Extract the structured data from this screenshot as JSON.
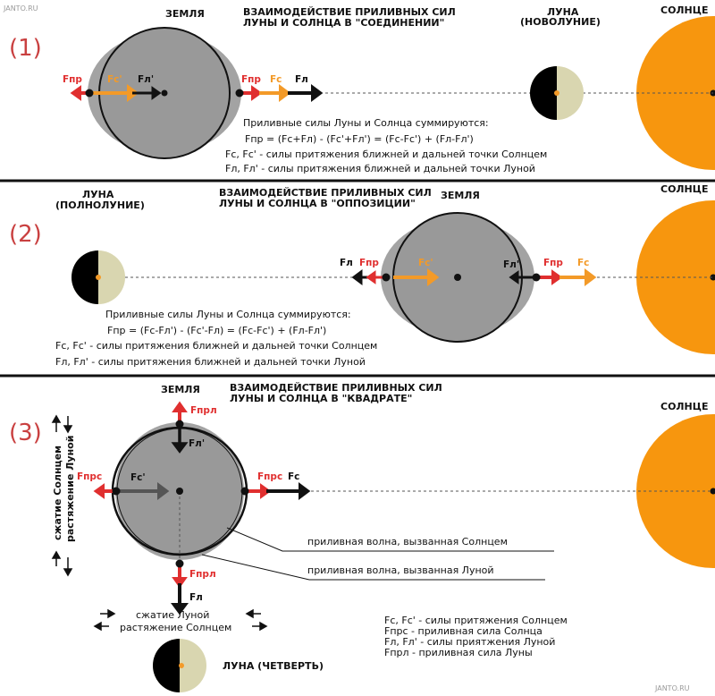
{
  "site": {
    "watermark_top": "JANTO.RU",
    "watermark_bottom": "JANTO.RU"
  },
  "colors": {
    "sun": "#f7960e",
    "earth": "#999999",
    "earth_bulge": "#a3a3a3",
    "moon_light": "#d9d6b0",
    "moon_dark": "#000000",
    "red_arrow": "#e02f2f",
    "orange_arrow": "#f39a28",
    "black_arrow": "#111111",
    "divider": "#111111",
    "section_number": "#c94040"
  },
  "panels": [
    {
      "number": "(1)",
      "title_line1": "ВЗАИМОДЕЙСТВИЕ ПРИЛИВНЫХ СИЛ",
      "title_line2": "ЛУНЫ И СОЛНЦА В \"СОЕДИНЕНИИ\"",
      "earth_label": "ЗЕМЛЯ",
      "moon_label_line1": "ЛУНА",
      "moon_label_line2": "(НОВОЛУНИЕ)",
      "sun_label": "СОЛНЦЕ",
      "arrows": {
        "fpr_left": "Fпр",
        "fc_prime": "Fc'",
        "fl_prime": "Fл'",
        "fpr_right": "Fпр",
        "fc": "Fc",
        "fl": "Fл"
      },
      "notes": [
        "Приливные силы Луны и Солнца суммируются:",
        "Fпр = (Fc+Fл) - (Fc'+Fл') = (Fc-Fc') + (Fл-Fл')",
        "Fc, Fc' - силы притяжения ближней и дальней точки Солнцем",
        "Fл, Fл' - силы притяжения ближней и дальней точки Луной"
      ]
    },
    {
      "number": "(2)",
      "title_line1": "ВЗАИМОДЕЙСТВИЕ ПРИЛИВНЫХ СИЛ",
      "title_line2": "ЛУНЫ И СОЛНЦА В \"ОППОЗИЦИИ\"",
      "earth_label": "ЗЕМЛЯ",
      "moon_label_line1": "ЛУНА",
      "moon_label_line2": "(ПОЛНОЛУНИЕ)",
      "sun_label": "СОЛНЦЕ",
      "arrows": {
        "fl_left": "Fл",
        "fpr_left": "Fпр",
        "fc_prime": "Fc'",
        "fl_prime": "Fл'",
        "fpr_right": "Fпр",
        "fc": "Fc"
      },
      "notes": [
        "Приливные силы Луны и Солнца суммируются:",
        "Fпр = (Fc-Fл') - (Fc'-Fл) = (Fc-Fc') + (Fл-Fл')",
        "Fc, Fc' - силы притяжения ближней и дальней точки Солнцем",
        "Fл, Fл' - силы притяжения ближней и дальней точки Луной"
      ]
    },
    {
      "number": "(3)",
      "title_line1": "ВЗАИМОДЕЙСТВИЕ ПРИЛИВНЫХ СИЛ",
      "title_line2": "ЛУНЫ И СОЛНЦА В \"КВАДРАТЕ\"",
      "earth_label": "ЗЕМЛЯ",
      "moon_label": "ЛУНА (ЧЕТВЕРТЬ)",
      "sun_label": "СОЛНЦЕ",
      "arrows": {
        "fprl_top": "Fпрл",
        "fl_prime": "Fл'",
        "fprs_left": "Fпрс",
        "fc_prime": "Fc'",
        "fprs_right": "Fпрс",
        "fc": "Fc",
        "fprl_bottom": "Fпрл",
        "fl": "Fл"
      },
      "side_label_line1": "сжатие Солнцем",
      "side_label_line2": "растяжение Луной",
      "bottom_label_line1": "сжатие Луной",
      "bottom_label_line2": "растяжение Солнцем",
      "wave_sun": "приливная волна, вызванная Солнцем",
      "wave_moon": "приливная волна, вызванная  Луной",
      "legend": [
        "Fc, Fc' - силы притяжения Солнцем",
        "Fпрс - приливная сила Солнца",
        "Fл, Fл' - силы приятжения Луной",
        "Fпрл - приливная сила Луны"
      ]
    }
  ]
}
